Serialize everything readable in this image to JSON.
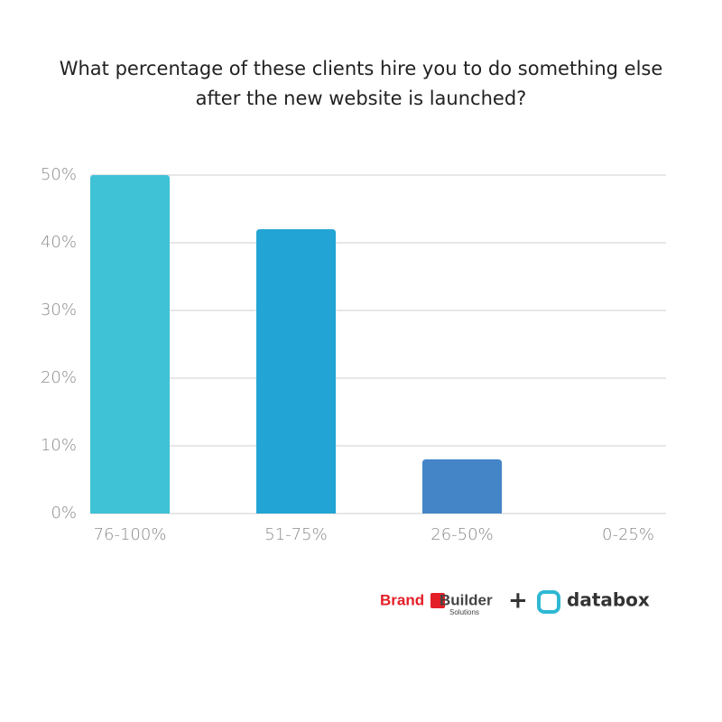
{
  "chart_data": {
    "type": "bar",
    "title": "What percentage of these clients hire you to do something else after the new website is launched?",
    "categories": [
      "76-100%",
      "51-75%",
      "26-50%",
      "0-25%"
    ],
    "values": [
      50,
      42,
      8,
      0
    ],
    "colors": [
      "#3fc1d6",
      "#22a5d4",
      "#4485c8",
      "#4485c8"
    ],
    "ylim": [
      0,
      50
    ],
    "yticks": [
      {
        "value": 0,
        "label": "0%"
      },
      {
        "value": 10,
        "label": "10%"
      },
      {
        "value": 20,
        "label": "20%"
      },
      {
        "value": 30,
        "label": "30%"
      },
      {
        "value": 40,
        "label": "40%"
      },
      {
        "value": 50,
        "label": "50%"
      }
    ],
    "grid": true
  },
  "branding": {
    "brand": "Brand",
    "builder": "Builder",
    "solutions": "Solutions",
    "plus": "+",
    "databox": "databox"
  }
}
